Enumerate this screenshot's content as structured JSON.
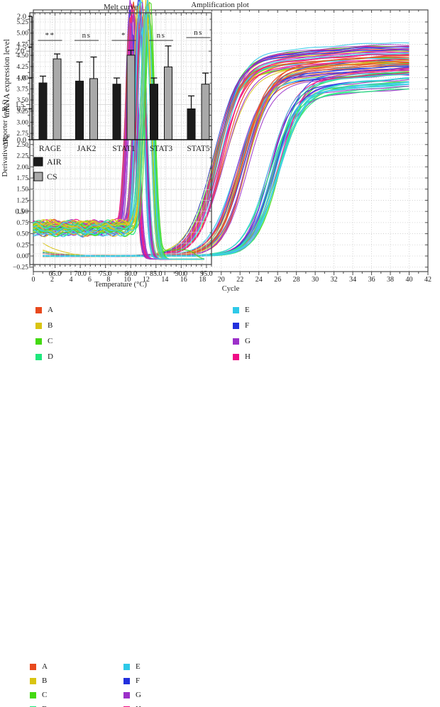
{
  "series_colors": {
    "A": "#e8491d",
    "B": "#d9c411",
    "C": "#44d911",
    "D": "#1ee87c",
    "E": "#2ec9e8",
    "F": "#2230dd",
    "G": "#9c30c9",
    "H": "#f00c86"
  },
  "well_legend": {
    "columns": [
      [
        "A",
        "B",
        "C",
        "D"
      ],
      [
        "E",
        "F",
        "G",
        "H"
      ]
    ]
  },
  "chart_data": [
    {
      "type": "line",
      "id": "amplification",
      "title": "Amplification plot",
      "xlabel": "Cycle",
      "ylabel": {
        "pre": "ΔR",
        "sub": "n",
        "post": ""
      },
      "xlim": [
        0,
        42
      ],
      "ylim": [
        -0.35,
        5.52
      ],
      "xticks": [
        0,
        2,
        4,
        6,
        8,
        10,
        12,
        14,
        16,
        18,
        20,
        22,
        24,
        26,
        28,
        30,
        32,
        34,
        36,
        38,
        40,
        42
      ],
      "xtick_minor_step": 1,
      "yticks": [
        -0.25,
        0.0,
        0.25,
        0.5,
        0.75,
        1.0,
        1.25,
        1.5,
        1.75,
        2.0,
        2.25,
        2.5,
        2.75,
        3.0,
        3.25,
        3.5,
        3.75,
        4.0,
        4.25,
        4.5,
        4.75,
        5.0,
        5.25
      ],
      "grid": "dotted",
      "legend_position": "below",
      "cycle_range": [
        1,
        40
      ],
      "sigmoid_clusters": [
        {
          "ct": [
            19.1,
            20.3
          ],
          "plateau": [
            4.3,
            4.78
          ],
          "slope": [
            1.15,
            1.45
          ],
          "colors": [
            "B",
            "C",
            "C",
            "B",
            "H",
            "G",
            "F",
            "E",
            "A",
            "H"
          ],
          "reps": 3
        },
        {
          "ct": [
            21.6,
            22.8
          ],
          "plateau": [
            4.05,
            4.5
          ],
          "slope": [
            1.15,
            1.45
          ],
          "colors": [
            "A",
            "A",
            "F",
            "F",
            "E",
            "B",
            "G",
            "A"
          ],
          "reps": 3
        },
        {
          "ct": [
            24.8,
            26.3
          ],
          "plateau": [
            3.72,
            4.3
          ],
          "slope": [
            1.15,
            1.45
          ],
          "colors": [
            "C",
            "D",
            "G",
            "H",
            "F",
            "E",
            "D",
            "E"
          ],
          "reps": 3
        }
      ],
      "initial_dip_values": [
        0.3,
        0.14,
        0.1,
        0.08,
        0.06,
        0.05
      ]
    },
    {
      "type": "line",
      "id": "melt",
      "title": "Melt curve",
      "xlabel": "Temperature (°C)",
      "ylabel": {
        "pre": "Derivative reporter (−R",
        "sub": "n",
        "post": "′)"
      },
      "xlim": [
        60,
        96
      ],
      "ylim": [
        0,
        2.36
      ],
      "xticks": [
        65.0,
        70.0,
        75.0,
        80.0,
        85.0,
        90.0,
        95.0
      ],
      "xtick_minor_step": 1,
      "yticks": [
        0.5,
        1.0,
        1.5,
        2.0
      ],
      "ytick_minor_step": 0.1,
      "grid": "solid",
      "legend_position": "below",
      "temp_range": [
        60.6,
        94.7
      ],
      "baseline": [
        0.24,
        0.34
      ],
      "post_level": 0.05,
      "peak_groups": [
        {
          "center": [
            79.9,
            80.6
          ],
          "height": [
            1.85,
            2.25
          ],
          "sigma": [
            0.8,
            1.0
          ],
          "colors": [
            "H",
            "G",
            "F",
            "A",
            "H",
            "G"
          ],
          "reps": 3
        },
        {
          "center": [
            81.4,
            82.4
          ],
          "height": [
            1.9,
            2.3
          ],
          "sigma": [
            0.8,
            1.05
          ],
          "colors": [
            "E",
            "F",
            "A",
            "B",
            "H",
            "G",
            "E"
          ],
          "reps": 3
        },
        {
          "center": [
            82.9,
            83.9
          ],
          "height": [
            1.95,
            2.35
          ],
          "sigma": [
            0.8,
            1.05
          ],
          "colors": [
            "C",
            "D",
            "B",
            "C",
            "B",
            "E"
          ],
          "reps": 3
        }
      ],
      "outlier_tail": {
        "group": 2,
        "index": 2,
        "level": 0.09,
        "end": 92.8
      }
    },
    {
      "type": "bar",
      "id": "expression",
      "title": "",
      "ylabel": "mRNA expression level",
      "ylim": [
        0.0,
        2.0
      ],
      "yticks": [
        0.0,
        0.5,
        1.0,
        1.5,
        2.0
      ],
      "categories": [
        "RAGE",
        "JAK2",
        "STAT1",
        "STAT3",
        "STAT5"
      ],
      "series": [
        {
          "name": "AIR",
          "color": "#1b1b1b",
          "values": [
            0.92,
            0.95,
            0.9,
            0.9,
            0.5
          ],
          "errors": [
            0.11,
            0.31,
            0.1,
            0.1,
            0.21
          ]
        },
        {
          "name": "CS",
          "color": "#a9a9a9",
          "values": [
            1.31,
            0.99,
            1.37,
            1.18,
            0.9
          ],
          "errors": [
            0.08,
            0.35,
            0.08,
            0.34,
            0.18
          ]
        }
      ],
      "significance": [
        "**",
        "ns",
        "*",
        "ns",
        "ns"
      ],
      "legend_position": "below"
    }
  ]
}
